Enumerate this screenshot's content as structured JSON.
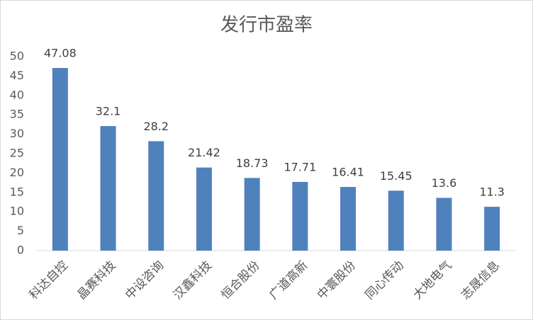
{
  "chart_data": {
    "type": "bar",
    "title": "发行市盈率",
    "categories": [
      "科达自控",
      "晶赛科技",
      "中设咨询",
      "汉鑫科技",
      "恒合股份",
      "广道高新",
      "中寰股份",
      "同心传动",
      "大地电气",
      "志晟信息"
    ],
    "values": [
      47.08,
      32.1,
      28.2,
      21.42,
      18.73,
      17.71,
      16.41,
      15.45,
      13.6,
      11.3
    ],
    "color": "#4f81bd",
    "ylim": [
      0,
      50
    ],
    "yticks": [
      0,
      5,
      10,
      15,
      20,
      25,
      30,
      35,
      40,
      45,
      50
    ],
    "grid": false
  }
}
